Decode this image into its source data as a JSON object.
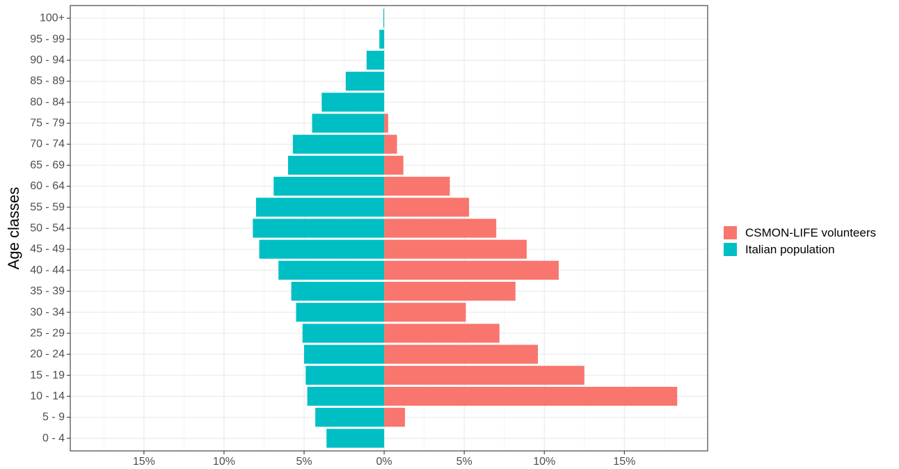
{
  "chart_data": {
    "type": "bar",
    "orientation": "horizontal-diverging",
    "ylabel": "Age classes",
    "xlabel": "",
    "categories": [
      "0 - 4",
      "5 - 9",
      "10 - 14",
      "15 - 19",
      "20 - 24",
      "25 - 29",
      "30 - 34",
      "35 - 39",
      "40 - 44",
      "45 - 49",
      "50 - 54",
      "55 - 59",
      "60 - 64",
      "65 - 69",
      "70 - 74",
      "75 - 79",
      "80 - 84",
      "85 - 89",
      "90 - 94",
      "95 - 99",
      "100+"
    ],
    "series": [
      {
        "name": "CSMON-LIFE volunteers",
        "color": "#F8766D",
        "side": "right",
        "values": [
          0,
          1.3,
          18.3,
          12.5,
          9.6,
          7.2,
          5.1,
          8.2,
          10.9,
          8.9,
          7.0,
          5.3,
          4.1,
          1.2,
          0.8,
          0.25,
          0,
          0,
          0,
          0,
          0
        ]
      },
      {
        "name": "Italian population",
        "color": "#00BFC4",
        "side": "left",
        "values": [
          3.6,
          4.3,
          4.8,
          4.9,
          5.0,
          5.1,
          5.5,
          5.8,
          6.6,
          7.8,
          8.2,
          8.0,
          6.9,
          6.0,
          5.7,
          4.5,
          3.9,
          2.4,
          1.1,
          0.3,
          0.05
        ]
      }
    ],
    "xticks": [
      -15,
      -10,
      -5,
      0,
      5,
      10,
      15
    ],
    "xtick_labels": [
      "15%",
      "10%",
      "5%",
      "0%",
      "5%",
      "10%",
      "15%"
    ],
    "xlim": [
      -19.6,
      20.2
    ],
    "grid": true,
    "legend_position": "right"
  }
}
